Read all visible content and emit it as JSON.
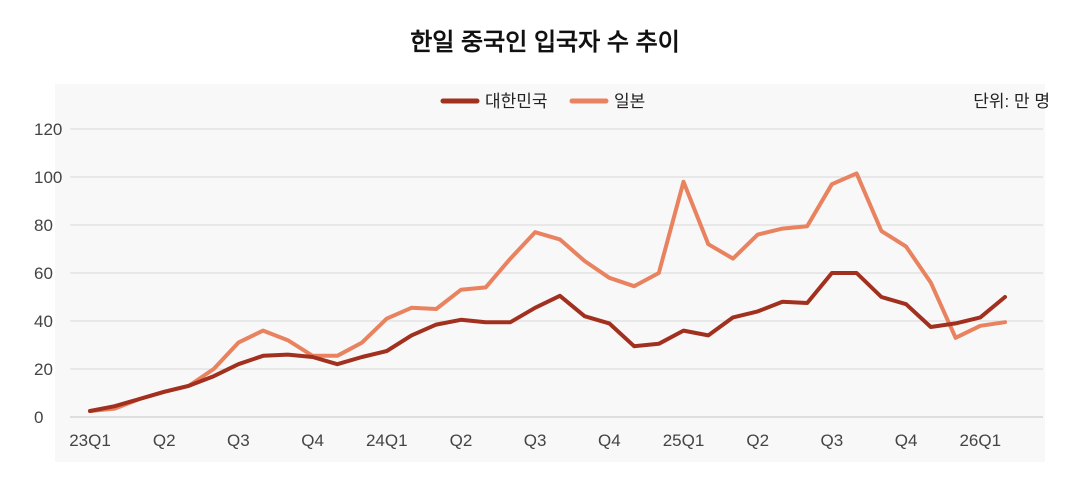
{
  "chart_data": {
    "type": "line",
    "title": "한일 중국인 입국자 수 추이",
    "unit_label": "단위: 만 명",
    "x_tick_labels": [
      "23Q1",
      "Q2",
      "Q3",
      "Q4",
      "24Q1",
      "Q2",
      "Q3",
      "Q4",
      "25Q1",
      "Q2",
      "Q3",
      "Q4",
      "26Q1"
    ],
    "ylim": [
      0,
      120
    ],
    "y_ticks": [
      0,
      20,
      40,
      60,
      80,
      100,
      120
    ],
    "grid": true,
    "legend_position": "top-center",
    "series": [
      {
        "name": "대한민국",
        "color": "#a1301f",
        "values": [
          2.5,
          4.5,
          7.5,
          10.5,
          13,
          17,
          22,
          25.5,
          26,
          25,
          22,
          25,
          27.5,
          34,
          38.5,
          40.5,
          39.5,
          39.5,
          45.5,
          50.5,
          42,
          39,
          29.5,
          30.5,
          36,
          34,
          41.5,
          44,
          48,
          47.5,
          60,
          60,
          50,
          47,
          37.5,
          39,
          41.5,
          50
        ]
      },
      {
        "name": "일본",
        "color": "#e8825f",
        "values": [
          2.5,
          3.5,
          7.5,
          10.5,
          13,
          20,
          31,
          36,
          32,
          25.5,
          25.5,
          31,
          41,
          45.5,
          45,
          53,
          54,
          66,
          77,
          74,
          65,
          58,
          54.5,
          60,
          98,
          72,
          66,
          76,
          78.5,
          79.5,
          97,
          101.5,
          77.5,
          71,
          56,
          33,
          38,
          39.5
        ]
      }
    ]
  }
}
